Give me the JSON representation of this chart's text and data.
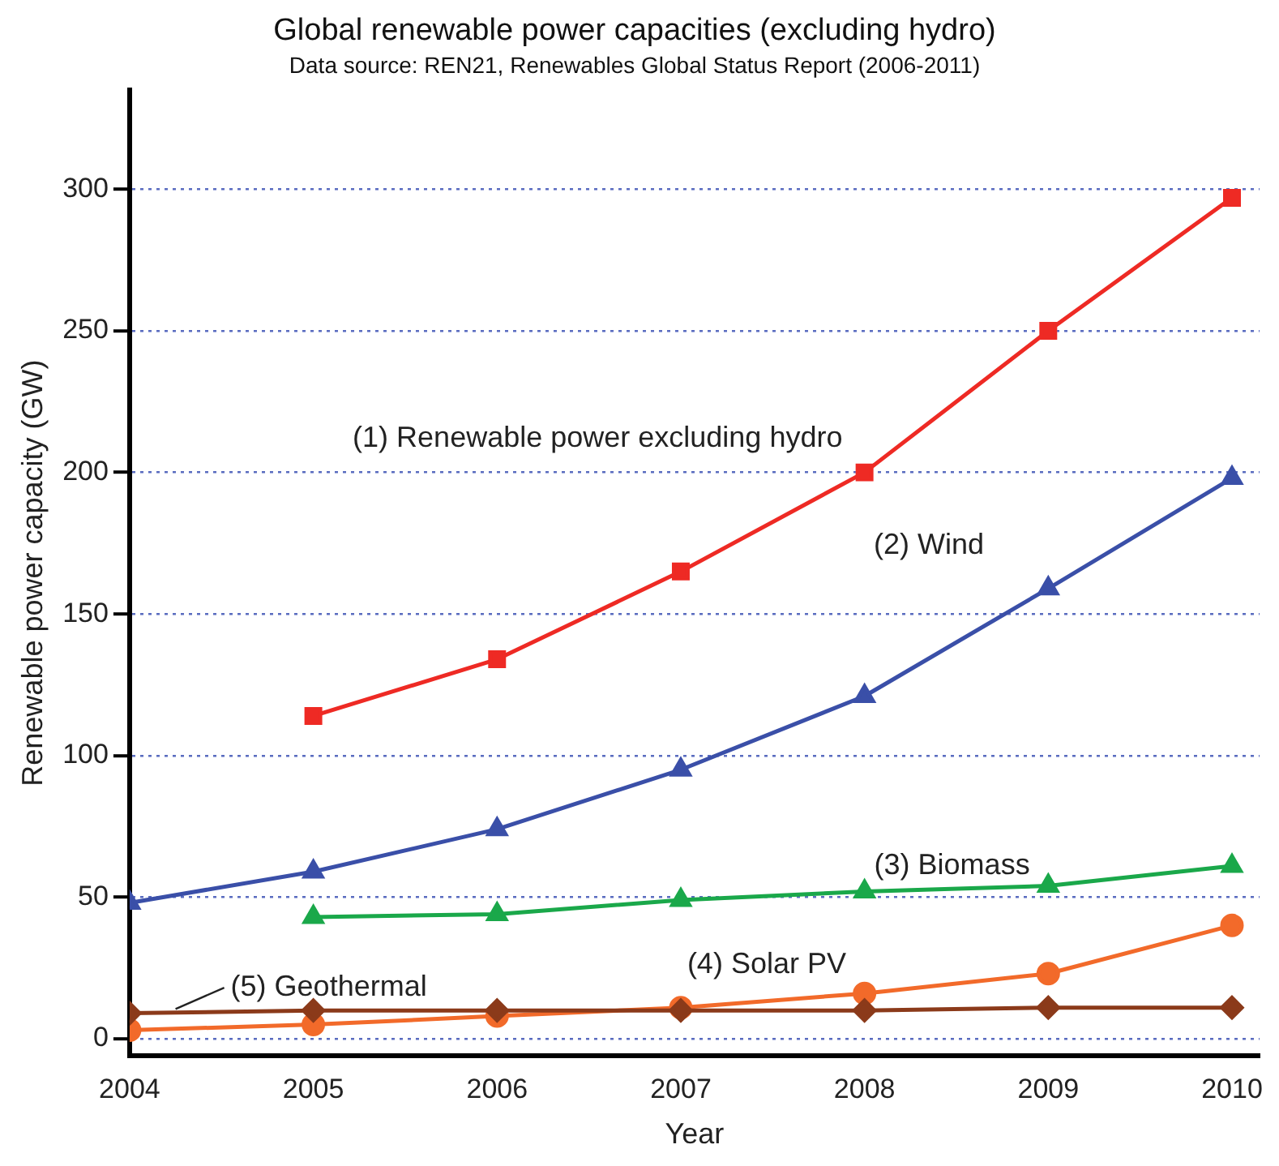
{
  "chart_data": {
    "type": "line",
    "title": "Global renewable power capacities (excluding hydro)",
    "subtitle": "Data source: REN21, Renewables Global Status Report (2006-2011)",
    "xlabel": "Year",
    "ylabel": "Renewable power capacity (GW)",
    "x": [
      2004,
      2005,
      2006,
      2007,
      2008,
      2009,
      2010
    ],
    "xlim": [
      2004,
      2010.15
    ],
    "xticks": [
      2004,
      2005,
      2006,
      2007,
      2008,
      2009,
      2010
    ],
    "ylim": [
      -6,
      335
    ],
    "yticks": [
      0,
      50,
      100,
      150,
      200,
      250,
      300
    ],
    "grid": "y",
    "legend": false,
    "line_style": "solid",
    "series": [
      {
        "name": "(1) Renewable power excluding hydro",
        "color": "#ee2a24",
        "marker": "square",
        "values": [
          null,
          114,
          134,
          165,
          200,
          250,
          297
        ]
      },
      {
        "name": "(2) Wind",
        "color": "#3a4fa8",
        "marker": "triangle",
        "values": [
          48,
          59,
          74,
          95,
          121,
          159,
          198
        ]
      },
      {
        "name": "(3) Biomass",
        "color": "#1aa84a",
        "marker": "triangle",
        "values": [
          null,
          43,
          44,
          49,
          52,
          54,
          61
        ]
      },
      {
        "name": "(4) Solar PV",
        "color": "#f26a2a",
        "marker": "circle",
        "values": [
          3,
          5,
          8,
          11,
          16,
          23,
          40
        ]
      },
      {
        "name": "(5) Geothermal",
        "color": "#8b3a1a",
        "marker": "diamond",
        "values": [
          9,
          10,
          10,
          10,
          10,
          11,
          11
        ]
      }
    ]
  }
}
